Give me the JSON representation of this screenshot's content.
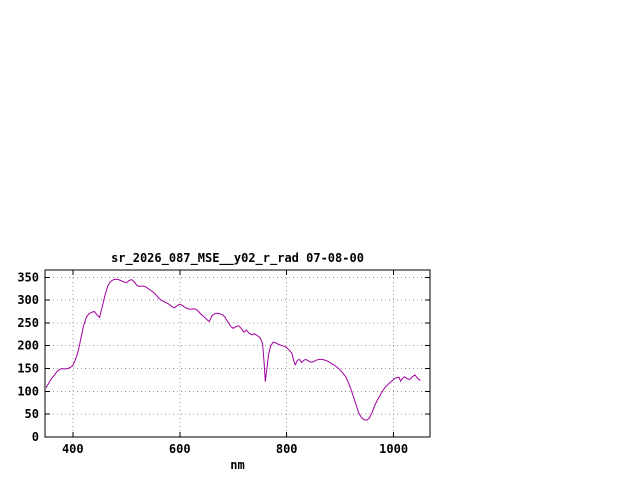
{
  "page": {
    "background": "#ffffff"
  },
  "chart_data": {
    "type": "line",
    "title": "sr_2026_087_MSE__y02_r_rad 07-08-00",
    "xlabel": "nm",
    "ylabel": "",
    "xlim": [
      348,
      1068
    ],
    "ylim": [
      0,
      366
    ],
    "x_ticks": [
      400,
      600,
      800,
      1000
    ],
    "y_ticks": [
      0,
      50,
      100,
      150,
      200,
      250,
      300,
      350
    ],
    "grid": true,
    "legend": "none",
    "line_color": "#a000a0",
    "grid_color": "#999999",
    "axis_color": "#000000",
    "series": [
      {
        "name": "sr_2026_087_MSE__y02_r_rad",
        "x": [
          350,
          355,
          360,
          365,
          370,
          375,
          380,
          385,
          390,
          395,
          400,
          405,
          410,
          415,
          420,
          425,
          430,
          435,
          440,
          445,
          450,
          455,
          460,
          465,
          470,
          475,
          480,
          485,
          490,
          495,
          500,
          505,
          510,
          515,
          520,
          525,
          530,
          535,
          540,
          545,
          550,
          555,
          560,
          565,
          570,
          575,
          580,
          585,
          590,
          595,
          600,
          605,
          610,
          615,
          620,
          625,
          630,
          635,
          640,
          645,
          650,
          655,
          660,
          665,
          670,
          675,
          680,
          685,
          690,
          695,
          700,
          705,
          710,
          715,
          720,
          725,
          730,
          735,
          740,
          745,
          750,
          755,
          758,
          760,
          763,
          766,
          770,
          775,
          780,
          785,
          790,
          795,
          800,
          805,
          810,
          813,
          816,
          820,
          824,
          828,
          832,
          836,
          840,
          845,
          850,
          855,
          860,
          865,
          870,
          875,
          880,
          885,
          890,
          895,
          900,
          905,
          910,
          915,
          920,
          925,
          930,
          935,
          940,
          945,
          950,
          955,
          960,
          965,
          970,
          975,
          980,
          985,
          990,
          995,
          1000,
          1005,
          1010,
          1013,
          1016,
          1020,
          1025,
          1030,
          1035,
          1040,
          1045,
          1050
        ],
        "y": [
          108,
          118,
          128,
          135,
          143,
          148,
          150,
          149,
          150,
          152,
          157,
          170,
          188,
          215,
          243,
          262,
          270,
          273,
          275,
          268,
          262,
          285,
          310,
          330,
          340,
          344,
          346,
          345,
          343,
          340,
          338,
          343,
          345,
          340,
          332,
          330,
          331,
          330,
          326,
          322,
          318,
          312,
          305,
          300,
          297,
          294,
          291,
          286,
          283,
          288,
          291,
          288,
          284,
          281,
          280,
          281,
          280,
          275,
          269,
          264,
          258,
          253,
          265,
          270,
          271,
          270,
          268,
          262,
          252,
          243,
          238,
          242,
          244,
          238,
          230,
          234,
          227,
          224,
          226,
          222,
          218,
          205,
          160,
          122,
          150,
          180,
          200,
          208,
          206,
          203,
          201,
          199,
          196,
          190,
          183,
          168,
          158,
          168,
          170,
          163,
          168,
          170,
          167,
          164,
          165,
          168,
          170,
          170,
          169,
          167,
          164,
          160,
          157,
          152,
          147,
          140,
          133,
          120,
          105,
          88,
          70,
          52,
          42,
          38,
          37,
          42,
          55,
          70,
          82,
          92,
          102,
          110,
          116,
          121,
          126,
          130,
          131,
          122,
          128,
          132,
          128,
          126,
          132,
          136,
          128,
          124
        ]
      }
    ]
  }
}
